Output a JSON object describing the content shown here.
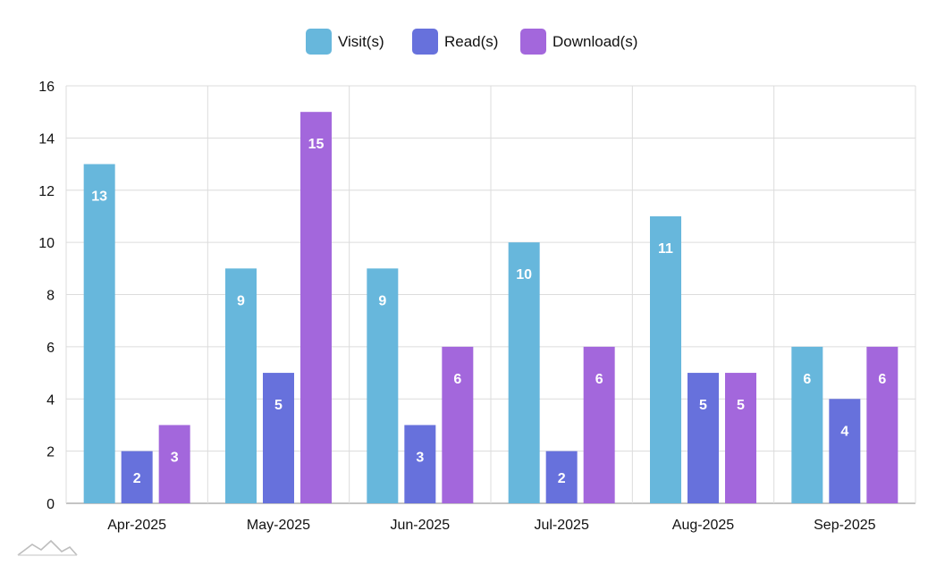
{
  "chart_data": {
    "type": "bar",
    "title": "",
    "xlabel": "",
    "ylabel": "",
    "ylim": [
      0,
      16
    ],
    "yticks": [
      0,
      2,
      4,
      6,
      8,
      10,
      12,
      14,
      16
    ],
    "grid": true,
    "legend_position": "top-center",
    "categories": [
      "Apr-2025",
      "May-2025",
      "Jun-2025",
      "Jul-2025",
      "Aug-2025",
      "Sep-2025"
    ],
    "series": [
      {
        "name": "Visit(s)",
        "color": "#67b7dc",
        "values": [
          13,
          9,
          9,
          10,
          11,
          6
        ]
      },
      {
        "name": "Read(s)",
        "color": "#6771dc",
        "values": [
          2,
          5,
          3,
          2,
          5,
          4
        ]
      },
      {
        "name": "Download(s)",
        "color": "#a367dc",
        "values": [
          3,
          15,
          6,
          6,
          5,
          6
        ]
      }
    ]
  },
  "watermark_icon": "chart-logo-icon"
}
